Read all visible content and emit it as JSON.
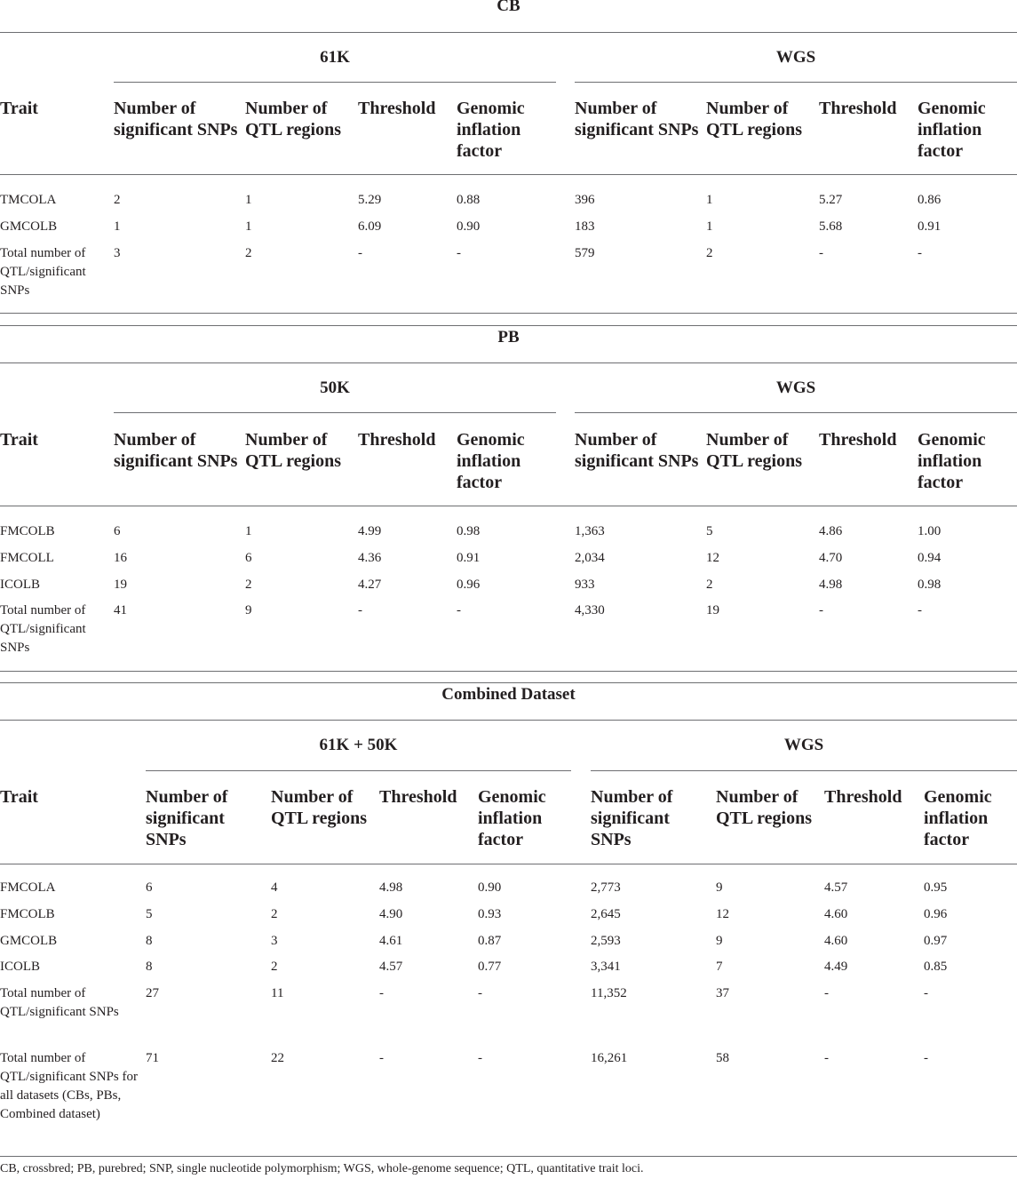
{
  "sections": [
    {
      "title": "CB",
      "groups": [
        "61K",
        "WGS"
      ],
      "trait_header": "Trait",
      "col_headers": [
        "Number of significant SNPs",
        "Number of QTL regions",
        "Threshold",
        "Genomic inflation factor"
      ],
      "rows": [
        [
          "TMCOLA",
          "2",
          "1",
          "5.29",
          "0.88",
          "396",
          "1",
          "5.27",
          "0.86"
        ],
        [
          "GMCOLB",
          "1",
          "1",
          "6.09",
          "0.90",
          "183",
          "1",
          "5.68",
          "0.91"
        ],
        [
          "Total number of QTL/significant SNPs",
          "3",
          "2",
          "-",
          "-",
          "579",
          "2",
          "-",
          "-"
        ]
      ]
    },
    {
      "title": "PB",
      "groups": [
        "50K",
        "WGS"
      ],
      "trait_header": "Trait",
      "col_headers": [
        "Number of significant SNPs",
        "Number of QTL regions",
        "Threshold",
        "Genomic inflation factor"
      ],
      "rows": [
        [
          "FMCOLB",
          "6",
          "1",
          "4.99",
          "0.98",
          "1,363",
          "5",
          "4.86",
          "1.00"
        ],
        [
          "FMCOLL",
          "16",
          "6",
          "4.36",
          "0.91",
          "2,034",
          "12",
          "4.70",
          "0.94"
        ],
        [
          "ICOLB",
          "19",
          "2",
          "4.27",
          "0.96",
          "933",
          "2",
          "4.98",
          "0.98"
        ],
        [
          "Total number of QTL/significant SNPs",
          "41",
          "9",
          "-",
          "-",
          "4,330",
          "19",
          "-",
          "-"
        ]
      ]
    },
    {
      "title": "Combined Dataset",
      "groups": [
        "61K + 50K",
        "WGS"
      ],
      "trait_header": "Trait",
      "col_headers": [
        "Number of significant SNPs",
        "Number of QTL regions",
        "Threshold",
        "Genomic inflation factor"
      ],
      "rows": [
        [
          "FMCOLA",
          "6",
          "4",
          "4.98",
          "0.90",
          "2,773",
          "9",
          "4.57",
          "0.95"
        ],
        [
          "FMCOLB",
          "5",
          "2",
          "4.90",
          "0.93",
          "2,645",
          "12",
          "4.60",
          "0.96"
        ],
        [
          "GMCOLB",
          "8",
          "3",
          "4.61",
          "0.87",
          "2,593",
          "9",
          "4.60",
          "0.97"
        ],
        [
          "ICOLB",
          "8",
          "2",
          "4.57",
          "0.77",
          "3,341",
          "7",
          "4.49",
          "0.85"
        ],
        [
          "Total number of QTL/significant SNPs",
          "27",
          "11",
          "-",
          "-",
          "11,352",
          "37",
          "-",
          "-"
        ],
        [
          "Total number of QTL/significant SNPs for all datasets (CBs, PBs, Combined dataset)",
          "71",
          "22",
          "-",
          "-",
          "16,261",
          "58",
          "-",
          "-"
        ]
      ]
    }
  ],
  "footnote": "CB, crossbred; PB, purebred; SNP, single nucleotide polymorphism; WGS, whole-genome sequence; QTL, quantitative trait loci."
}
